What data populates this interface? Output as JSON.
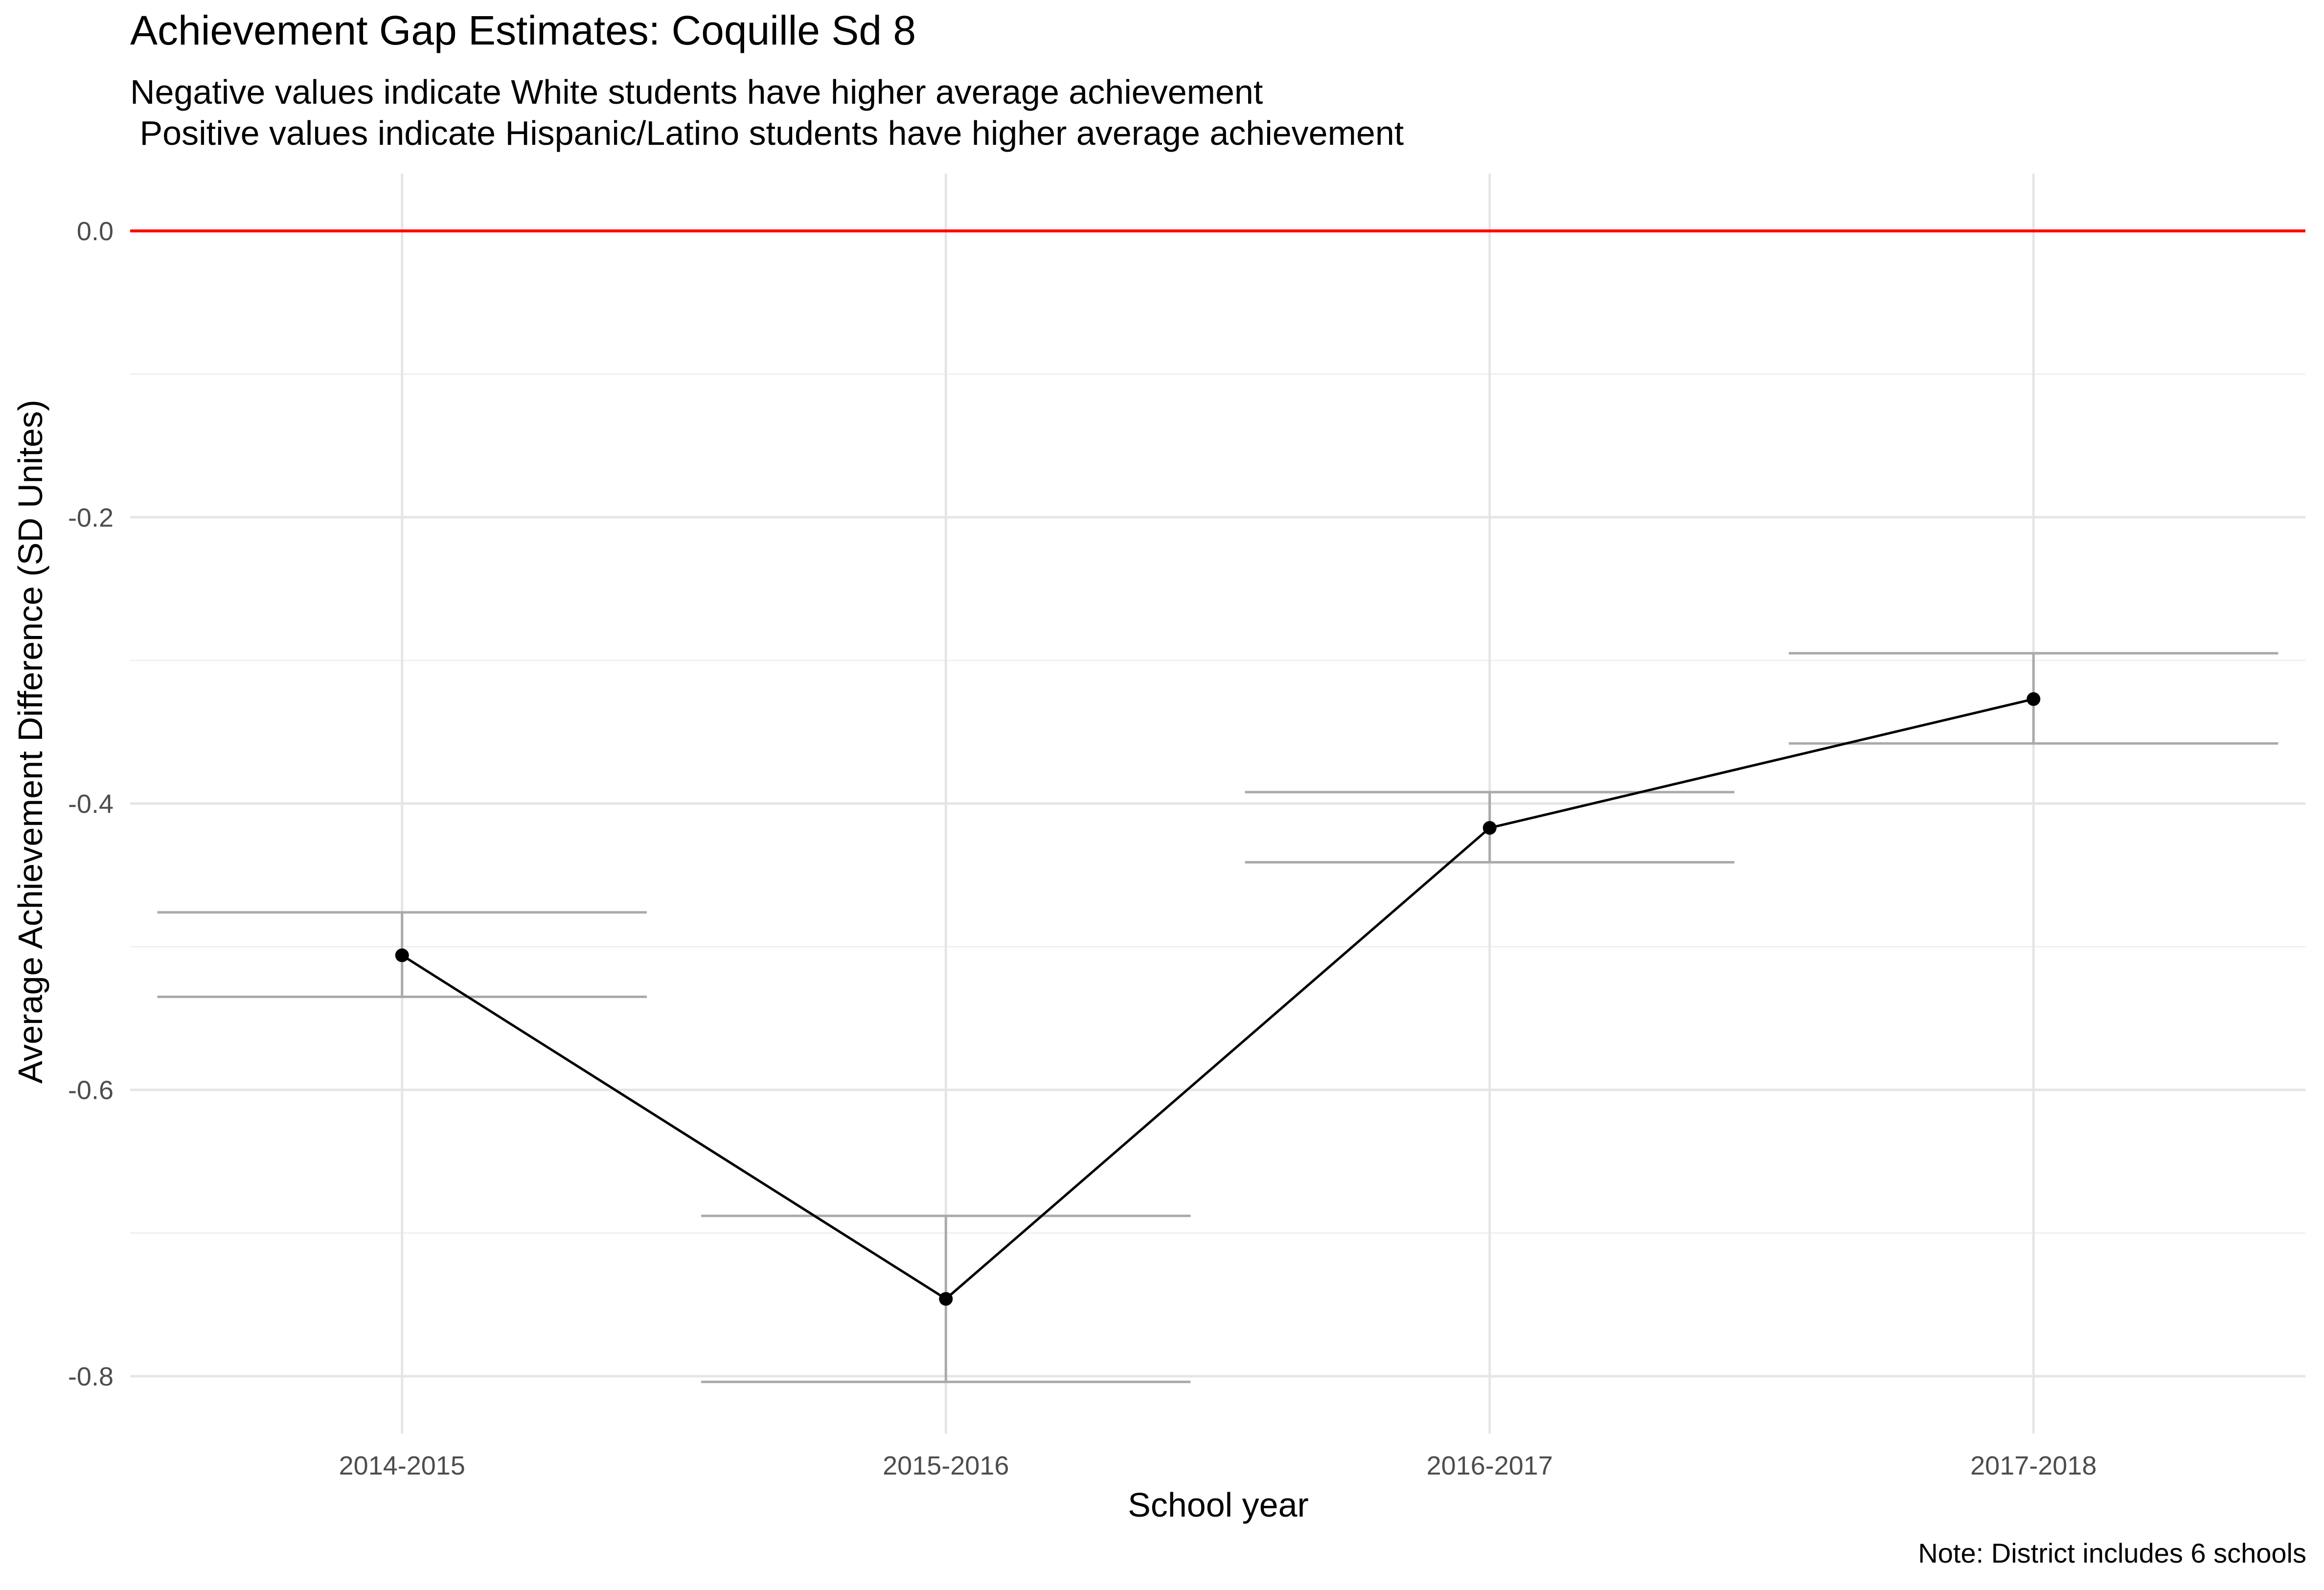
{
  "chart_data": {
    "type": "line",
    "title": "Achievement Gap Estimates: Coquille Sd 8",
    "subtitle_lines": [
      "Negative values indicate White students have higher average achievement",
      " Positive values indicate Hispanic/Latino students have higher average achievement"
    ],
    "caption": "Note: District includes 6 schools",
    "xlabel": "School year",
    "ylabel": "Average Achievement Difference (SD Unites)",
    "categories": [
      "2014-2015",
      "2015-2016",
      "2016-2017",
      "2017-2018"
    ],
    "values": [
      -0.506,
      -0.746,
      -0.417,
      -0.327
    ],
    "error_lower": [
      -0.535,
      -0.804,
      -0.441,
      -0.358
    ],
    "error_upper": [
      -0.476,
      -0.688,
      -0.392,
      -0.295
    ],
    "reference_line": {
      "y": 0.0,
      "color": "#ff0000"
    },
    "y_ticks": [
      0.0,
      -0.2,
      -0.4,
      -0.6,
      -0.8
    ],
    "y_tick_labels": [
      "0.0",
      "-0.2",
      "-0.4",
      "-0.6",
      "-0.8"
    ],
    "ylim": [
      -0.84,
      0.04
    ],
    "grid": true,
    "colors": {
      "line": "#000000",
      "point": "#000000",
      "errorbar": "#aaaaaa",
      "grid_major": "#e5e5e5",
      "grid_minor": "#f0f0f0"
    }
  }
}
